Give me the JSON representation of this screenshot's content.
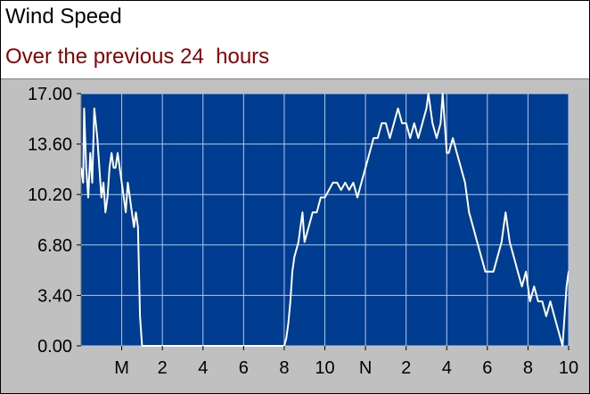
{
  "chart_data": {
    "type": "line",
    "title": "Wind Speed",
    "subtitle": "Over the previous 24  hours",
    "xlabel": "",
    "ylabel": "",
    "ylim": [
      0,
      17
    ],
    "y_ticks": [
      "0.00",
      "3.40",
      "6.80",
      "10.20",
      "13.60",
      "17.00"
    ],
    "y_tick_values": [
      0,
      3.4,
      6.8,
      10.2,
      13.6,
      17
    ],
    "xlim": [
      -2,
      22
    ],
    "x_ticks": [
      "M",
      "2",
      "4",
      "6",
      "8",
      "10",
      "N",
      "2",
      "4",
      "6",
      "8",
      "10"
    ],
    "x_tick_values": [
      0,
      2,
      4,
      6,
      8,
      10,
      12,
      14,
      16,
      18,
      20,
      22
    ],
    "grid": true,
    "series": [
      {
        "color": "#ffffff",
        "x": [
          -2.0,
          -1.9,
          -1.85,
          -1.75,
          -1.65,
          -1.55,
          -1.45,
          -1.35,
          -1.2,
          -1.1,
          -1.0,
          -0.9,
          -0.8,
          -0.7,
          -0.6,
          -0.5,
          -0.4,
          -0.3,
          -0.2,
          -0.1,
          0.0,
          0.1,
          0.2,
          0.3,
          0.4,
          0.5,
          0.6,
          0.7,
          0.8,
          0.9,
          1.0,
          1.05,
          1.1,
          1.2,
          1.3,
          1.4,
          2.0,
          3.0,
          4.0,
          5.0,
          6.0,
          7.0,
          8.0,
          8.1,
          8.2,
          8.3,
          8.4,
          8.5,
          8.6,
          8.7,
          8.8,
          8.9,
          9.0,
          9.2,
          9.4,
          9.6,
          9.8,
          10.0,
          10.2,
          10.4,
          10.6,
          10.8,
          11.0,
          11.2,
          11.4,
          11.6,
          11.8,
          12.0,
          12.2,
          12.4,
          12.6,
          12.8,
          13.0,
          13.2,
          13.4,
          13.6,
          13.8,
          14.0,
          14.2,
          14.4,
          14.6,
          14.8,
          15.0,
          15.1,
          15.3,
          15.5,
          15.7,
          15.8,
          16.0,
          16.1,
          16.3,
          16.5,
          16.7,
          16.9,
          17.1,
          17.3,
          17.5,
          17.7,
          17.9,
          18.1,
          18.3,
          18.5,
          18.7,
          18.9,
          19.1,
          19.3,
          19.5,
          19.7,
          19.9,
          20.1,
          20.3,
          20.5,
          20.7,
          20.9,
          21.1,
          21.3,
          21.5,
          21.7,
          21.9,
          22.0,
          22.2
        ],
        "y": [
          12,
          11,
          16,
          12,
          10,
          13,
          11,
          16,
          14,
          12,
          10,
          11,
          9,
          10,
          12,
          13,
          12,
          12,
          13,
          12,
          11,
          10,
          9,
          11,
          10,
          9,
          8,
          9,
          8,
          2,
          0,
          0,
          0,
          0,
          0,
          0,
          0,
          0,
          0,
          0,
          0,
          0,
          0,
          0.5,
          1.5,
          3,
          5,
          6,
          6.5,
          7,
          8,
          9,
          7,
          8,
          9,
          9,
          10,
          10,
          10.5,
          11,
          11,
          10.5,
          11,
          10.5,
          11,
          10,
          11,
          12,
          13,
          14,
          14,
          15,
          15,
          14,
          15,
          16,
          15,
          15,
          14,
          15,
          14,
          15,
          16,
          17,
          15,
          14,
          15,
          17,
          13,
          13,
          14,
          13,
          12,
          11,
          9,
          8,
          7,
          6,
          5,
          5,
          5,
          6,
          7,
          9,
          7,
          6,
          5,
          4,
          5,
          3,
          4,
          3,
          3,
          2,
          3,
          2,
          1,
          0,
          4,
          5,
          5
        ]
      }
    ]
  }
}
